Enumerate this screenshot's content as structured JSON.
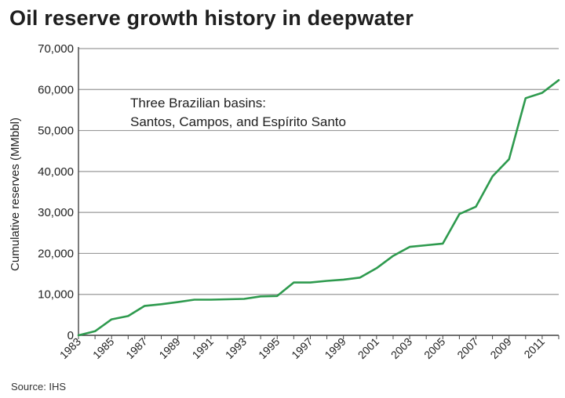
{
  "chart_data": {
    "type": "line",
    "title": "Oil reserve growth history in deepwater",
    "ylabel": "Cumulative reserves (MMbbl)",
    "xlabel": "",
    "ylim": [
      0,
      70000
    ],
    "yticks": [
      0,
      10000,
      20000,
      30000,
      40000,
      50000,
      60000,
      70000
    ],
    "ytick_labels": [
      "0",
      "10,000",
      "20,000",
      "30,000",
      "40,000",
      "50,000",
      "60,000",
      "70,000"
    ],
    "xlim": [
      1983,
      2012
    ],
    "xtick_labels": [
      "1983",
      "1985",
      "1987",
      "1989",
      "1991",
      "1993",
      "1995",
      "1997",
      "1999",
      "2001",
      "2003",
      "2005",
      "2007",
      "2009",
      "2011"
    ],
    "grid": true,
    "annotation": [
      "Three Brazilian basins:",
      "Santos, Campos, and Espírito Santo"
    ],
    "series_color": "#2e9a4e",
    "series": [
      {
        "x": [
          1983,
          1984,
          1985,
          1986,
          1987,
          1988,
          1989,
          1990,
          1991,
          1992,
          1993,
          1994,
          1995,
          1996,
          1997,
          1998,
          1999,
          2000,
          2001,
          2002,
          2003,
          2004,
          2005,
          2006,
          2007,
          2008,
          2009,
          2010,
          2011,
          2012
        ],
        "values": [
          0,
          1000,
          3900,
          4700,
          7200,
          7600,
          8100,
          8700,
          8700,
          8800,
          8900,
          9500,
          9600,
          12900,
          12900,
          13300,
          13600,
          14100,
          16400,
          19400,
          21600,
          22000,
          22400,
          29600,
          31400,
          38800,
          43000,
          57900,
          59200,
          62300
        ]
      }
    ]
  },
  "source": "Source: IHS"
}
